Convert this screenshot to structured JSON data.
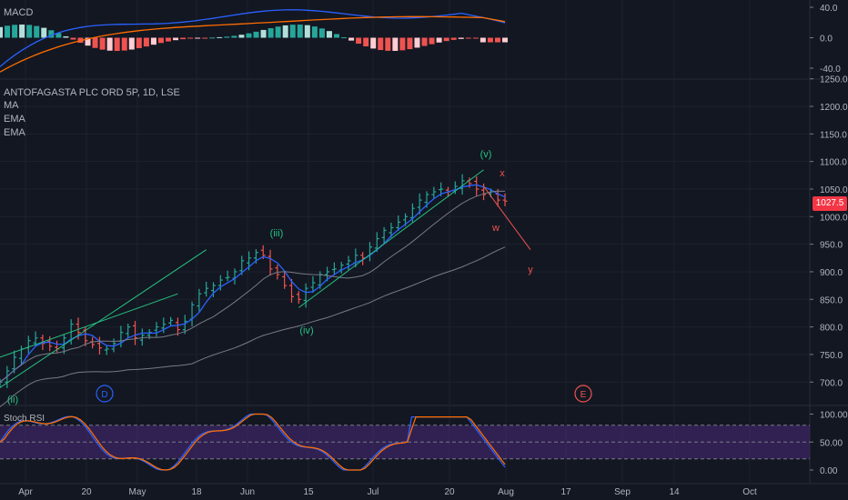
{
  "panes": {
    "macd": {
      "label": "MACD",
      "axis_ticks": [
        "40.0",
        "0.0",
        "-40.0"
      ],
      "tick_values": [
        40,
        0,
        -40
      ]
    },
    "main": {
      "symbol_title": "ANTOFAGASTA PLC ORD 5P, 1D, LSE",
      "indicators": [
        "MA",
        "EMA",
        "EMA"
      ],
      "axis_ticks": [
        "1250.0",
        "1200.0",
        "1150.0",
        "1100.0",
        "1050.0",
        "1000.0",
        "950.0",
        "900.0",
        "850.0",
        "800.0",
        "750.0",
        "700.0"
      ],
      "tick_values": [
        1250,
        1200,
        1150,
        1100,
        1050,
        1000,
        950,
        900,
        850,
        800,
        750,
        700
      ],
      "last_price": "1027.5",
      "wave_labels": [
        "(ii)",
        "(iii)",
        "(iv)",
        "(v)",
        "x",
        "w",
        "y",
        "D",
        "E"
      ]
    },
    "stoch": {
      "label": "Stoch RSI",
      "axis_ticks": [
        "100.00",
        "50.00",
        "0.00"
      ],
      "tick_values": [
        100,
        50,
        0
      ]
    }
  },
  "time_axis": {
    "ticks": [
      "Apr",
      "20",
      "May",
      "18",
      "Jun",
      "15",
      "Jul",
      "20",
      "Aug",
      "17",
      "Sep",
      "14",
      "Oct"
    ]
  },
  "colors": {
    "background": "#131722",
    "up": "#26a69a",
    "down": "#ef5350",
    "fast_line": "#2962ff",
    "slow_line": "#ff6d00",
    "ma_line": "#787b86",
    "wave_green": "#26c281",
    "wave_red": "#ef5350",
    "circle_blue": "#2962ff",
    "stoch_band": "#4a2a7a",
    "last_price_bg": "#f23645"
  },
  "chart_data": {
    "type": "candlestick",
    "symbol": "ANTOFAGASTA PLC ORD 5P",
    "interval": "1D",
    "exchange": "LSE",
    "price_range": [
      670,
      1260
    ],
    "last_close": 1027.5,
    "close_path": [
      700,
      720,
      745,
      760,
      775,
      780,
      770,
      765,
      760,
      780,
      805,
      790,
      775,
      768,
      762,
      760,
      770,
      790,
      800,
      780,
      785,
      790,
      800,
      805,
      812,
      795,
      810,
      840,
      860,
      870,
      875,
      885,
      890,
      900,
      920,
      925,
      935,
      930,
      905,
      895,
      875,
      855,
      850,
      870,
      880,
      895,
      900,
      905,
      912,
      920,
      930,
      925,
      945,
      960,
      975,
      980,
      990,
      1000,
      1015,
      1030,
      1040,
      1045,
      1050,
      1045,
      1055,
      1065,
      1060,
      1050,
      1040,
      1045,
      1030,
      1028
    ],
    "wave_points": [
      {
        "label": "(ii)",
        "price": 700
      },
      {
        "label": "(iii)",
        "price": 940
      },
      {
        "label": "(iv)",
        "price": 830
      },
      {
        "label": "(v)",
        "price": 1080
      },
      {
        "label": "w",
        "price": 1010
      },
      {
        "label": "x",
        "price": 1055
      },
      {
        "label": "y",
        "price": 940
      }
    ],
    "macd_range": [
      -50,
      50
    ],
    "stoch_range": [
      -10,
      110
    ],
    "stoch_band": [
      20,
      80
    ]
  }
}
